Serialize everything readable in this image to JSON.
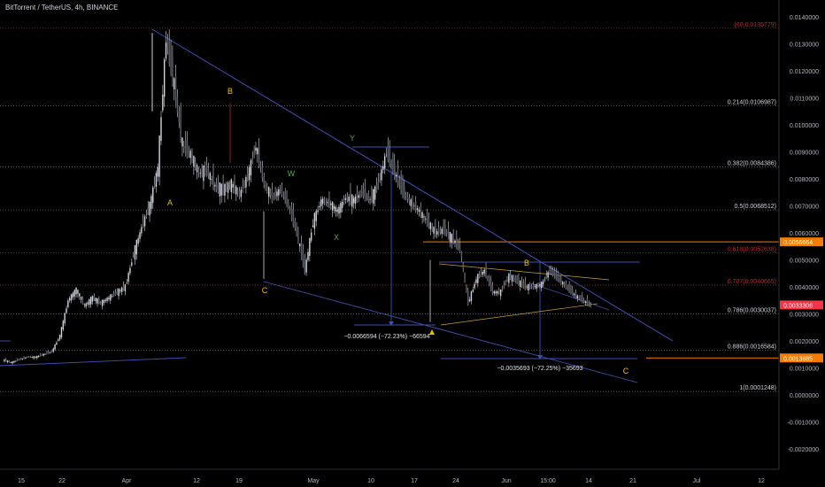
{
  "header": {
    "symbol_title": "BitTorrent / TetherUS, 4h, BINANCE"
  },
  "colors": {
    "background": "#000000",
    "candle": "#d1d4dc",
    "trendline": "#3f51b5",
    "fib_gray": "#787b86",
    "fib_red": "#b22833",
    "fib_orange": "#f57c00",
    "wave_yellow": "#f0c000",
    "wave_green": "#4caf50",
    "price_badge": "#f23645",
    "level_badge": "#f57c00"
  },
  "chart_data": {
    "type": "candlestick",
    "x_labels": [
      "15",
      "22",
      "Apr",
      "12",
      "19",
      "May",
      "10",
      "17",
      "24",
      "Jun",
      "15:00",
      "14",
      "21",
      "Jul",
      "12"
    ],
    "y_ticks": [
      "0.0140000",
      "0.0130000",
      "0.0120000",
      "0.0110000",
      "0.0100000",
      "0.0090000",
      "0.0080000",
      "0.0070000",
      "0.0060000",
      "0.0050000",
      "0.0040000",
      "0.0030000",
      "0.0020000",
      "0.0010000",
      "0.0000000",
      "-0.0010000",
      "-0.0020000"
    ],
    "ylim": [
      -0.0025,
      0.0145
    ],
    "fib_levels": [
      {
        "label": "(60,0.0135779)",
        "value": 0.0135779,
        "color": "red"
      },
      {
        "label": "0.214(0.0106987)",
        "value": 0.0106987,
        "color": "gray"
      },
      {
        "label": "0.382(0.0084386)",
        "value": 0.0084386,
        "color": "gray"
      },
      {
        "label": "0.5(0.0068512)",
        "value": 0.0068512,
        "color": "gray"
      },
      {
        "label": "0.618(0.0052638)",
        "value": 0.0052638,
        "color": "red"
      },
      {
        "label": "0.707(0.0040665)",
        "value": 0.0040665,
        "color": "red"
      },
      {
        "label": "0.786(0.0030037)",
        "value": 0.0030037,
        "color": "gray"
      },
      {
        "label": "0.886(0.0016584)",
        "value": 0.0016584,
        "color": "gray"
      },
      {
        "label": "1(0.0001248)",
        "value": 0.0001248,
        "color": "gray"
      }
    ],
    "orange_levels": [
      0.0056664,
      0.0013685
    ],
    "price_badges": [
      {
        "label": "0.0056664",
        "value": 0.0056664,
        "color": "orange"
      },
      {
        "label": "0.0033306",
        "value": 0.0033306,
        "color": "red"
      },
      {
        "label": "0.0013685",
        "value": 0.0013685,
        "color": "orange"
      }
    ],
    "wave_labels": [
      {
        "text": "A",
        "x": "Apr",
        "y": 0.007,
        "color": "yellow"
      },
      {
        "text": "B",
        "x": "12-19",
        "y": 0.0112,
        "color": "yellow"
      },
      {
        "text": "C",
        "x": "19",
        "y": 0.004,
        "color": "yellow"
      },
      {
        "text": "W",
        "x": "May",
        "y": 0.0086,
        "color": "green"
      },
      {
        "text": "X",
        "x": "May",
        "y": 0.0063,
        "color": "green"
      },
      {
        "text": "Y",
        "x": "May",
        "y": 0.0095,
        "color": "green"
      },
      {
        "text": "B",
        "x": "Jun",
        "y": 0.0051,
        "color": "yellow"
      },
      {
        "text": "C",
        "x": "21",
        "y": 0.001,
        "color": "yellow"
      }
    ],
    "measurements": [
      {
        "text": "−0.0066594 (−72.23%) −66594"
      },
      {
        "text": "−0.0035693 (−72.25%) −35693"
      }
    ],
    "price_series_approx": [
      0.0013,
      0.0012,
      0.0013,
      0.0014,
      0.0014,
      0.0015,
      0.0016,
      0.0022,
      0.0035,
      0.0039,
      0.0033,
      0.0036,
      0.0034,
      0.0036,
      0.0038,
      0.004,
      0.0052,
      0.0062,
      0.007,
      0.0084,
      0.0132,
      0.0114,
      0.0092,
      0.0089,
      0.0082,
      0.0083,
      0.0077,
      0.0076,
      0.0078,
      0.0074,
      0.0081,
      0.0092,
      0.0078,
      0.0073,
      0.0076,
      0.007,
      0.006,
      0.0046,
      0.0064,
      0.0072,
      0.0071,
      0.0068,
      0.0073,
      0.0072,
      0.0075,
      0.0072,
      0.0078,
      0.009,
      0.0082,
      0.0075,
      0.0071,
      0.0068,
      0.0064,
      0.006,
      0.0061,
      0.0058,
      0.0054,
      0.0034,
      0.0043,
      0.0046,
      0.0038,
      0.0038,
      0.0044,
      0.0042,
      0.004,
      0.004,
      0.0041,
      0.0046,
      0.0043,
      0.004,
      0.0037,
      0.0035,
      0.0033
    ]
  }
}
